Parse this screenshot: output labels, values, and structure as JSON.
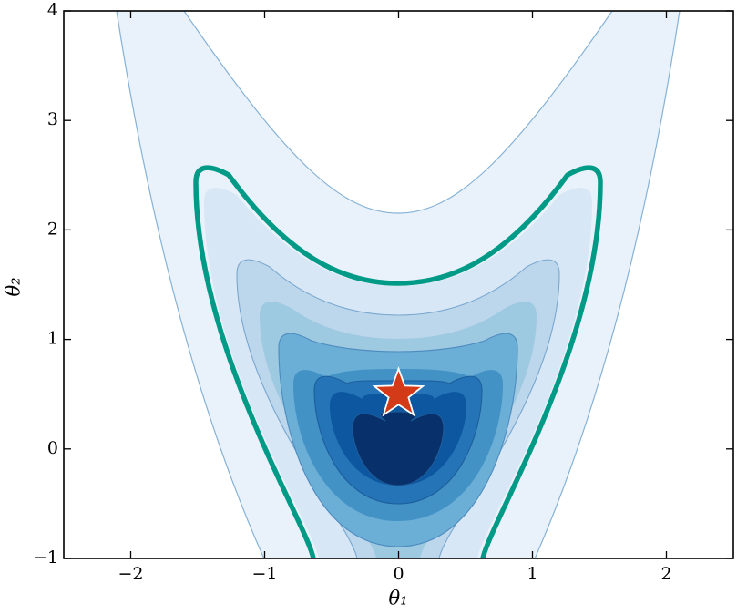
{
  "chart_data": {
    "type": "contour",
    "x_label": "θ₁",
    "y_label": "θ₂",
    "xlim": [
      -2.5,
      2.5
    ],
    "ylim": [
      -1,
      4
    ],
    "xticks": [
      {
        "value": -2,
        "label": "−2"
      },
      {
        "value": -1,
        "label": "−1"
      },
      0,
      1,
      2
    ],
    "yticks": [
      {
        "value": -1,
        "label": "−1"
      },
      0,
      1,
      2,
      3,
      4
    ],
    "marker": {
      "x": 0,
      "y": 0.5,
      "color": "#d33a17"
    },
    "highlight_color": "#009a87"
  }
}
